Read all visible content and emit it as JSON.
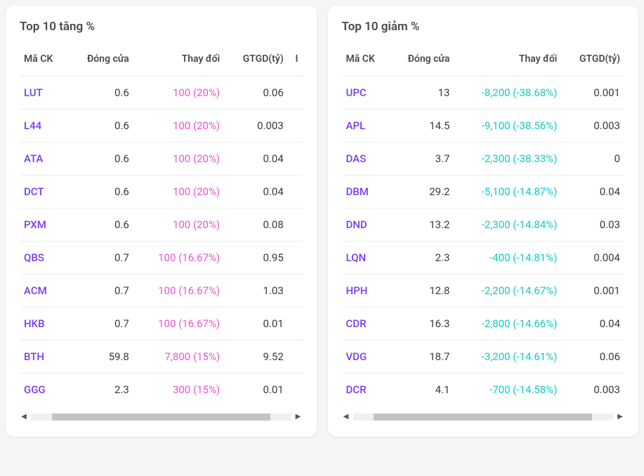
{
  "gainers": {
    "title": "Top 10 tăng %",
    "columns": [
      "Mã CK",
      "Đóng cửa",
      "Thay đổi",
      "GTGD(tỷ)",
      "I"
    ],
    "rows": [
      {
        "ticker": "LUT",
        "close": "0.6",
        "change": "100 (20%)",
        "value": "0.06"
      },
      {
        "ticker": "L44",
        "close": "0.6",
        "change": "100 (20%)",
        "value": "0.003"
      },
      {
        "ticker": "ATA",
        "close": "0.6",
        "change": "100 (20%)",
        "value": "0.04"
      },
      {
        "ticker": "DCT",
        "close": "0.6",
        "change": "100 (20%)",
        "value": "0.04"
      },
      {
        "ticker": "PXM",
        "close": "0.6",
        "change": "100 (20%)",
        "value": "0.08"
      },
      {
        "ticker": "QBS",
        "close": "0.7",
        "change": "100 (16.67%)",
        "value": "0.95"
      },
      {
        "ticker": "ACM",
        "close": "0.7",
        "change": "100 (16.67%)",
        "value": "1.03"
      },
      {
        "ticker": "HKB",
        "close": "0.7",
        "change": "100 (16.67%)",
        "value": "0.01"
      },
      {
        "ticker": "BTH",
        "close": "59.8",
        "change": "7,800 (15%)",
        "value": "9.52"
      },
      {
        "ticker": "GGG",
        "close": "2.3",
        "change": "300 (15%)",
        "value": "0.01"
      }
    ],
    "scroll": {
      "thumb_left_pct": 8,
      "thumb_width_pct": 84
    }
  },
  "losers": {
    "title": "Top 10 giảm %",
    "columns": [
      "Mã CK",
      "Đóng cửa",
      "Thay đổi",
      "GTGD(tỷ)"
    ],
    "rows": [
      {
        "ticker": "UPC",
        "close": "13",
        "change": "-8,200 (-38.68%)",
        "value": "0.001"
      },
      {
        "ticker": "APL",
        "close": "14.5",
        "change": "-9,100 (-38.56%)",
        "value": "0.003"
      },
      {
        "ticker": "DAS",
        "close": "3.7",
        "change": "-2,300 (-38.33%)",
        "value": "0"
      },
      {
        "ticker": "DBM",
        "close": "29.2",
        "change": "-5,100 (-14.87%)",
        "value": "0.04"
      },
      {
        "ticker": "DND",
        "close": "13.2",
        "change": "-2,300 (-14.84%)",
        "value": "0.03"
      },
      {
        "ticker": "LQN",
        "close": "2.3",
        "change": "-400 (-14.81%)",
        "value": "0.004"
      },
      {
        "ticker": "HPH",
        "close": "12.8",
        "change": "-2,200 (-14.67%)",
        "value": "0.001"
      },
      {
        "ticker": "CDR",
        "close": "16.3",
        "change": "-2,800 (-14.66%)",
        "value": "0.04"
      },
      {
        "ticker": "VDG",
        "close": "18.7",
        "change": "-3,200 (-14.61%)",
        "value": "0.06"
      },
      {
        "ticker": "DCR",
        "close": "4.1",
        "change": "-700 (-14.58%)",
        "value": "0.003"
      }
    ],
    "scroll": {
      "thumb_left_pct": 8,
      "thumb_width_pct": 84
    }
  },
  "colors": {
    "ticker": "#7c3aed",
    "up": "#e955d3",
    "down": "#14c8c8",
    "text": "#3a3a3a",
    "border": "#ededed"
  }
}
